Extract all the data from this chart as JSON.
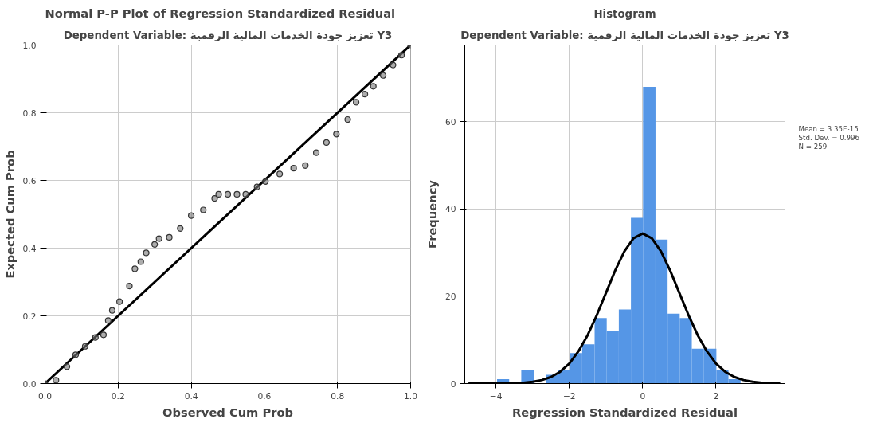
{
  "chart_data": [
    {
      "type": "scatter",
      "title": "Normal P-P Plot of Regression Standardized Residual",
      "subtitle": "Dependent Variable: تعزيز جودة الخدمات المالية الرقمية Y3",
      "xlabel": "Observed Cum Prob",
      "ylabel": "Expected Cum Prob",
      "xlim": [
        0,
        1
      ],
      "ylim": [
        0,
        1
      ],
      "xticks": [
        {
          "value": 0,
          "label": "0.0"
        },
        {
          "value": 0.2,
          "label": "0.2"
        },
        {
          "value": 0.4,
          "label": "0.4"
        },
        {
          "value": 0.6,
          "label": "0.6"
        },
        {
          "value": 0.8,
          "label": "0.8"
        },
        {
          "value": 1,
          "label": "1.0"
        }
      ],
      "yticks": [
        {
          "value": 0,
          "label": "0.0"
        },
        {
          "value": 0.2,
          "label": "0.2"
        },
        {
          "value": 0.4,
          "label": "0.4"
        },
        {
          "value": 0.6,
          "label": "0.6"
        },
        {
          "value": 0.8,
          "label": "0.8"
        },
        {
          "value": 1,
          "label": "1.0"
        }
      ],
      "grid": true,
      "series": [
        {
          "type": "line",
          "color": "#000000",
          "x": [
            0,
            1
          ],
          "values": [
            0,
            1
          ]
        },
        {
          "marker": "circle",
          "color": "#333333",
          "x": [
            0.0,
            0.03,
            0.06,
            0.084,
            0.11,
            0.138,
            0.16,
            0.173,
            0.184,
            0.204,
            0.231,
            0.246,
            0.262,
            0.277,
            0.3,
            0.312,
            0.34,
            0.37,
            0.4,
            0.433,
            0.464,
            0.475,
            0.5,
            0.525,
            0.549,
            0.58,
            0.603,
            0.642,
            0.68,
            0.712,
            0.742,
            0.77,
            0.797,
            0.828,
            0.851,
            0.875,
            0.898,
            0.925,
            0.952,
            0.975,
            1.0
          ],
          "values": [
            0.0,
            0.01,
            0.05,
            0.085,
            0.11,
            0.136,
            0.144,
            0.186,
            0.216,
            0.242,
            0.288,
            0.339,
            0.36,
            0.386,
            0.411,
            0.428,
            0.432,
            0.458,
            0.496,
            0.513,
            0.547,
            0.559,
            0.559,
            0.559,
            0.559,
            0.581,
            0.597,
            0.619,
            0.636,
            0.644,
            0.682,
            0.712,
            0.737,
            0.78,
            0.831,
            0.855,
            0.878,
            0.91,
            0.941,
            0.97,
            1.0
          ]
        }
      ]
    },
    {
      "type": "histogram",
      "title": "Histogram",
      "subtitle": "Dependent Variable: تعزيز جودة الخدمات المالية الرقمية Y3",
      "xlabel": "Regression Standardized Residual",
      "ylabel": "Frequency",
      "xlim": [
        -4.85,
        3.88
      ],
      "ylim": [
        0,
        77.6
      ],
      "xticks": [
        -4,
        -2,
        0,
        2
      ],
      "yticks": [
        0,
        20,
        40,
        60
      ],
      "grid": true,
      "annotations": [
        "Mean = 3.35E-15",
        "Std. Dev. = 0.996",
        "N = 259"
      ],
      "series": [
        {
          "color": "#5596e6",
          "bins": [
            -3.97,
            -3.64,
            -3.31,
            -2.97,
            -2.64,
            -2.31,
            -1.98,
            -1.65,
            -1.31,
            -0.98,
            -0.65,
            -0.32,
            0.01,
            0.35,
            0.68,
            1.01,
            1.34,
            1.67,
            2.01,
            2.34,
            2.67
          ],
          "values": [
            1,
            0,
            3,
            0,
            2,
            3,
            7,
            9,
            15,
            12,
            17,
            38,
            68,
            33,
            16,
            15,
            8,
            8,
            3,
            1
          ]
        },
        {
          "type": "line",
          "color": "#000000",
          "x": [
            -4.75,
            -4.25,
            -4.0,
            -3.75,
            -3.5,
            -3.25,
            -3.0,
            -2.75,
            -2.5,
            -2.25,
            -2.0,
            -1.75,
            -1.5,
            -1.25,
            -1.0,
            -0.75,
            -0.5,
            -0.25,
            0.0,
            0.25,
            0.5,
            0.75,
            1.0,
            1.25,
            1.5,
            1.75,
            2.0,
            2.25,
            2.5,
            2.75,
            3.0,
            3.25,
            3.5,
            3.75
          ],
          "values": [
            0.0,
            0.0,
            0.0,
            0.0,
            0.1,
            0.2,
            0.4,
            0.8,
            1.5,
            2.7,
            4.6,
            7.4,
            11.1,
            15.7,
            20.8,
            25.9,
            30.3,
            33.3,
            34.4,
            33.3,
            30.3,
            25.9,
            20.8,
            15.7,
            11.1,
            7.4,
            4.6,
            2.7,
            1.5,
            0.8,
            0.4,
            0.2,
            0.1,
            0.0
          ]
        }
      ]
    }
  ]
}
